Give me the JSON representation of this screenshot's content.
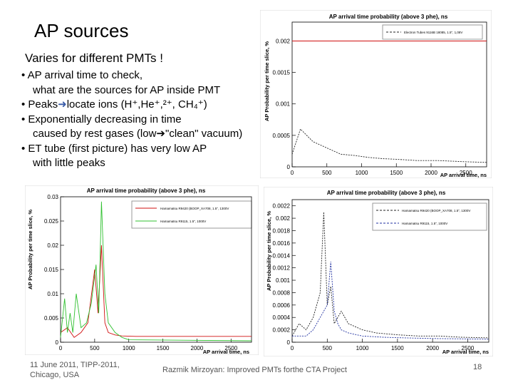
{
  "slide": {
    "title": "AP sources",
    "subtitle": "Varies for different PMTs !",
    "bullets": [
      "• AP arrival time to check,",
      "what are the sources for AP inside PMT",
      "• Peaks",
      "locate ions (H⁺,He⁺,²⁺, CH₄⁺)",
      "• Exponentially decreasing in time",
      "caused by rest gases (low",
      "\"clean\" vacuum)",
      "• ET tube (first picture) has very low AP",
      "with little peaks"
    ]
  },
  "footer": {
    "date_line1": "11 June 2011, TIPP-2011,",
    "date_line2": "Chicago, USA",
    "author": "Razmik Mirzoyan: Improved PMTs forthe CTA Project",
    "page": "18"
  },
  "chart_data": [
    {
      "type": "line",
      "title": "AP arrival time probability (above 3 phe), ns",
      "xlabel": "AP arrival time, ns",
      "ylabel": "AP Probability per time slice, %",
      "xlim": [
        0,
        2800
      ],
      "ylim": [
        0,
        0.0023
      ],
      "x_ticks": [
        "0",
        "500",
        "1000",
        "1500",
        "2000",
        "2500"
      ],
      "y_ticks": [
        "0",
        "0.0005",
        "0.001",
        "0.0015",
        "0.002"
      ],
      "legend": [
        "Electron Tubes 9116B 18085, 1.5\", 1,08V"
      ],
      "series": [
        {
          "color": "#222222",
          "style": "dashed",
          "x": [
            0,
            120,
            300,
            500,
            700,
            900,
            1100,
            1300,
            1500,
            1800,
            2100,
            2500,
            2800
          ],
          "values": [
            0.0002,
            0.0006,
            0.0004,
            0.0003,
            0.0002,
            0.00018,
            0.00015,
            0.00013,
            0.00012,
            0.0001,
            0.0001,
            8e-05,
            7e-05
          ]
        },
        {
          "color": "#d01010",
          "style": "solid",
          "x": [
            0,
            2800
          ],
          "values": [
            0.002,
            0.002
          ]
        }
      ]
    },
    {
      "type": "line",
      "title": "AP arrival time probability (above 3 phe), ns",
      "xlabel": "AP arrival time, ns",
      "ylabel": "AP Probability per time slice, %",
      "xlim": [
        0,
        2800
      ],
      "ylim": [
        0,
        0.03
      ],
      "x_ticks": [
        "0",
        "500",
        "1000",
        "1500",
        "2000",
        "2500"
      ],
      "y_ticks": [
        "0",
        "0.005",
        "0.01",
        "0.015",
        "0.02",
        "0.025",
        "0.03"
      ],
      "legend": [
        "Hamamatsu R9420 (BOOP_XA708, 1.5\", 1300V",
        "Hamamatsu R9115, 1.5\", 1000V"
      ],
      "series": [
        {
          "name": "Hamamatsu R9420 (BOOP_XA708, 1.5\", 1300V",
          "color": "#d01010",
          "style": "solid",
          "x": [
            0,
            100,
            200,
            300,
            400,
            500,
            550,
            600,
            650,
            700,
            800,
            900,
            1100,
            1400,
            2000,
            2800
          ],
          "values": [
            0.002,
            0.003,
            0.001,
            0.002,
            0.004,
            0.015,
            0.006,
            0.02,
            0.004,
            0.002,
            0.0015,
            0.0013,
            0.0012,
            0.0012,
            0.0012,
            0.0012
          ]
        },
        {
          "name": "Hamamatsu R9115, 1.5\", 1000V",
          "color": "#30c030",
          "style": "solid",
          "x": [
            0,
            60,
            100,
            140,
            180,
            230,
            300,
            380,
            450,
            520,
            560,
            600,
            650,
            700,
            800,
            900,
            1000,
            2800
          ],
          "values": [
            0.001,
            0.009,
            0.002,
            0.006,
            0.002,
            0.01,
            0.003,
            0.004,
            0.008,
            0.016,
            0.006,
            0.029,
            0.01,
            0.004,
            0.002,
            0.001,
            0.0005,
            0.0003
          ]
        }
      ]
    },
    {
      "type": "line",
      "title": "AP arrival time probability (above 3 phe), ns",
      "xlabel": "AP arrival time, ns",
      "ylabel": "AP Probability per time slice, %",
      "xlim": [
        0,
        2800
      ],
      "ylim": [
        0,
        0.0023
      ],
      "x_ticks": [
        "0",
        "500",
        "1000",
        "1500",
        "2000",
        "2500"
      ],
      "y_ticks": [
        "0",
        "0.0002",
        "0.0004",
        "0.0006",
        "0.0008",
        "0.001",
        "0.0012",
        "0.0014",
        "0.0016",
        "0.0018",
        "0.002",
        "0.0022"
      ],
      "legend": [
        "Hamamatsu R9420 (BOOP_XA708, 1.5\", 1300V",
        "Hamamatsu R9115, 1.5\", 1000V"
      ],
      "series": [
        {
          "name": "Hamamatsu R9420 (BOOP_XA708, 1.5\", 1300V",
          "color": "#222222",
          "style": "dashed",
          "x": [
            0,
            100,
            200,
            300,
            400,
            450,
            500,
            550,
            600,
            700,
            800,
            1000,
            1200,
            1500,
            1800,
            2100,
            2400,
            2800
          ],
          "values": [
            0.0001,
            0.0003,
            0.0002,
            0.0004,
            0.0008,
            0.0021,
            0.0006,
            0.0009,
            0.0003,
            0.0005,
            0.0003,
            0.0002,
            0.00015,
            0.00012,
            0.0001,
            0.0001,
            8e-05,
            7e-05
          ]
        },
        {
          "name": "Hamamatsu R9115, 1.5\", 1000V",
          "color": "#2030a0",
          "style": "dashed",
          "x": [
            0,
            100,
            200,
            300,
            400,
            500,
            550,
            600,
            650,
            700,
            800,
            1000,
            1300,
            1600,
            2000,
            2800
          ],
          "values": [
            0.0001,
            0.0001,
            0.0001,
            0.0002,
            0.0004,
            0.0006,
            0.0013,
            0.0005,
            0.0003,
            0.0002,
            0.00015,
            0.0001,
            8e-05,
            7e-05,
            6e-05,
            5e-05
          ]
        }
      ]
    }
  ]
}
